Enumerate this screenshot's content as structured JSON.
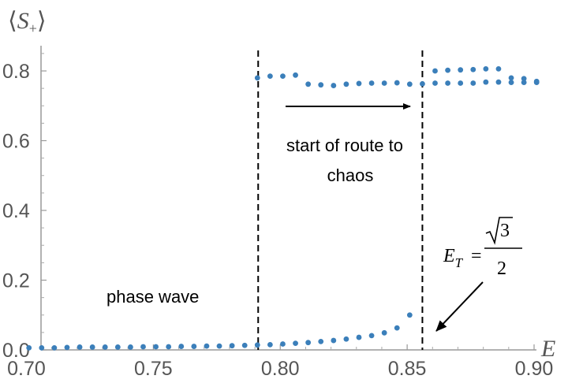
{
  "chart_data": {
    "type": "scatter",
    "xlabel": "E",
    "ylabel": {
      "open": "⟨",
      "var": "S",
      "sub": "+",
      "close": "⟩"
    },
    "xlim": [
      0.7,
      0.9
    ],
    "ylim": [
      0.0,
      0.87
    ],
    "xticks": [
      "0.70",
      "0.75",
      "0.80",
      "0.85",
      "0.90"
    ],
    "yticks": [
      "0.0",
      "0.2",
      "0.4",
      "0.6",
      "0.8"
    ],
    "grid": false,
    "marker_color": "#3b7fba",
    "series": [
      {
        "points": [
          [
            0.701,
            0.006
          ],
          [
            0.706,
            0.006
          ],
          [
            0.711,
            0.006
          ],
          [
            0.716,
            0.007
          ],
          [
            0.721,
            0.008
          ],
          [
            0.726,
            0.008
          ],
          [
            0.731,
            0.008
          ],
          [
            0.736,
            0.008
          ],
          [
            0.741,
            0.008
          ],
          [
            0.746,
            0.009
          ],
          [
            0.751,
            0.009
          ],
          [
            0.756,
            0.009
          ],
          [
            0.761,
            0.01
          ],
          [
            0.766,
            0.01
          ],
          [
            0.771,
            0.011
          ],
          [
            0.776,
            0.011
          ],
          [
            0.781,
            0.012
          ],
          [
            0.786,
            0.013
          ],
          [
            0.791,
            0.014
          ],
          [
            0.796,
            0.015
          ],
          [
            0.801,
            0.017
          ],
          [
            0.806,
            0.019
          ],
          [
            0.811,
            0.021
          ],
          [
            0.816,
            0.024
          ],
          [
            0.821,
            0.027
          ],
          [
            0.826,
            0.031
          ],
          [
            0.831,
            0.036
          ],
          [
            0.836,
            0.041
          ],
          [
            0.841,
            0.049
          ],
          [
            0.846,
            0.063
          ],
          [
            0.851,
            0.1
          ],
          [
            0.791,
            0.78
          ],
          [
            0.796,
            0.785
          ],
          [
            0.801,
            0.785
          ],
          [
            0.806,
            0.788
          ],
          [
            0.811,
            0.762
          ],
          [
            0.816,
            0.76
          ],
          [
            0.821,
            0.758
          ],
          [
            0.826,
            0.762
          ],
          [
            0.831,
            0.764
          ],
          [
            0.836,
            0.765
          ],
          [
            0.841,
            0.765
          ],
          [
            0.846,
            0.766
          ],
          [
            0.851,
            0.762
          ],
          [
            0.856,
            0.763
          ],
          [
            0.861,
            0.765
          ],
          [
            0.866,
            0.765
          ],
          [
            0.871,
            0.765
          ],
          [
            0.876,
            0.765
          ],
          [
            0.881,
            0.768
          ],
          [
            0.886,
            0.768
          ],
          [
            0.891,
            0.767
          ],
          [
            0.896,
            0.767
          ],
          [
            0.901,
            0.767
          ],
          [
            0.861,
            0.8
          ],
          [
            0.866,
            0.802
          ],
          [
            0.871,
            0.803
          ],
          [
            0.876,
            0.804
          ],
          [
            0.881,
            0.806
          ],
          [
            0.886,
            0.806
          ],
          [
            0.891,
            0.78
          ],
          [
            0.896,
            0.778
          ],
          [
            0.901,
            0.77
          ]
        ]
      }
    ],
    "vlines": [
      0.7913,
      0.856
    ],
    "annotations": {
      "route_line1": "start of route to",
      "route_line2": "chaos",
      "phase_wave": "phase wave",
      "et_var": "E",
      "et_sub": "T",
      "et_eq": "=",
      "et_num": "3",
      "et_den": "2"
    }
  }
}
